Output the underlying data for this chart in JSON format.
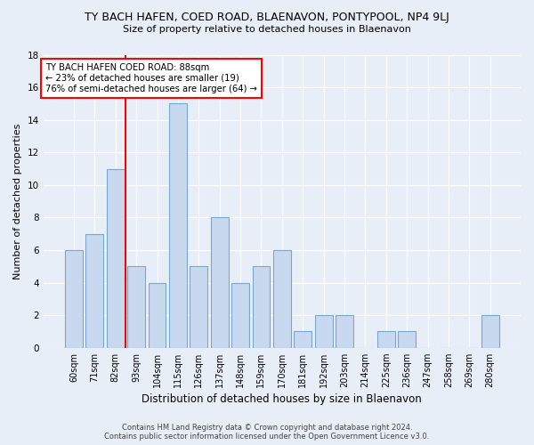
{
  "title": "TY BACH HAFEN, COED ROAD, BLAENAVON, PONTYPOOL, NP4 9LJ",
  "subtitle": "Size of property relative to detached houses in Blaenavon",
  "xlabel": "Distribution of detached houses by size in Blaenavon",
  "ylabel": "Number of detached properties",
  "categories": [
    "60sqm",
    "71sqm",
    "82sqm",
    "93sqm",
    "104sqm",
    "115sqm",
    "126sqm",
    "137sqm",
    "148sqm",
    "159sqm",
    "170sqm",
    "181sqm",
    "192sqm",
    "203sqm",
    "214sqm",
    "225sqm",
    "236sqm",
    "247sqm",
    "258sqm",
    "269sqm",
    "280sqm"
  ],
  "values": [
    6,
    7,
    11,
    5,
    4,
    15,
    5,
    8,
    4,
    5,
    6,
    1,
    2,
    2,
    0,
    1,
    1,
    0,
    0,
    0,
    2
  ],
  "bar_color": "#c8d8ee",
  "bar_edge_color": "#7aa8cc",
  "redline_x": 2.5,
  "annotation_title": "TY BACH HAFEN COED ROAD: 88sqm",
  "annotation_line1": "← 23% of detached houses are smaller (19)",
  "annotation_line2": "76% of semi-detached houses are larger (64) →",
  "footer1": "Contains HM Land Registry data © Crown copyright and database right 2024.",
  "footer2": "Contains public sector information licensed under the Open Government Licence v3.0.",
  "bg_color": "#e8eef8",
  "plot_bg_color": "#e8eef8",
  "ylim": [
    0,
    18
  ],
  "yticks": [
    0,
    2,
    4,
    6,
    8,
    10,
    12,
    14,
    16,
    18
  ]
}
